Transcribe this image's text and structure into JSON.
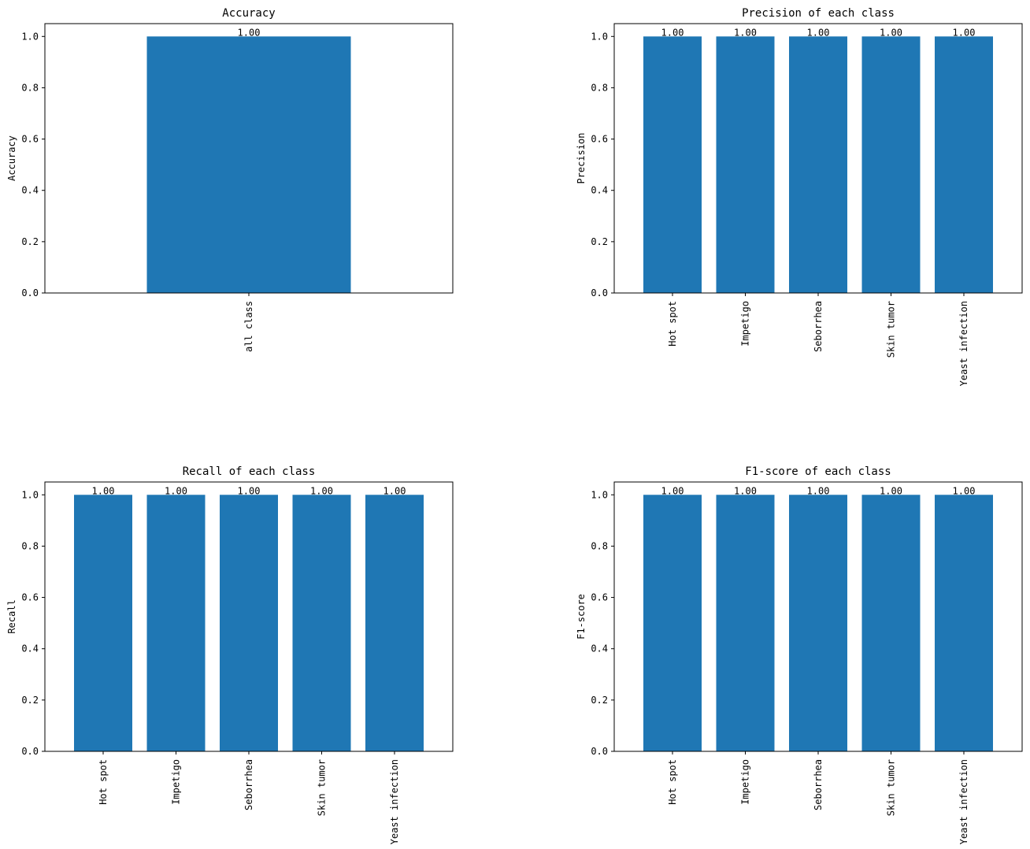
{
  "chart_data": [
    {
      "type": "bar",
      "title": "Accuracy",
      "xlabel": "",
      "ylabel": "Accuracy",
      "categories": [
        "all class"
      ],
      "values": [
        1.0
      ],
      "value_labels": [
        "1.00"
      ],
      "ylim": [
        0,
        1.05
      ],
      "yticks": [
        "0.0",
        "0.2",
        "0.4",
        "0.6",
        "0.8",
        "1.0"
      ],
      "grid": false,
      "color": "#1f77b4"
    },
    {
      "type": "bar",
      "title": "Precision of each class",
      "xlabel": "",
      "ylabel": "Precision",
      "categories": [
        "Hot spot",
        "Impetigo",
        "Seborrhea",
        "Skin tumor",
        "Yeast infection"
      ],
      "values": [
        1.0,
        1.0,
        1.0,
        1.0,
        1.0
      ],
      "value_labels": [
        "1.00",
        "1.00",
        "1.00",
        "1.00",
        "1.00"
      ],
      "ylim": [
        0,
        1.05
      ],
      "yticks": [
        "0.0",
        "0.2",
        "0.4",
        "0.6",
        "0.8",
        "1.0"
      ],
      "grid": false,
      "color": "#1f77b4"
    },
    {
      "type": "bar",
      "title": "Recall of each class",
      "xlabel": "",
      "ylabel": "Recall",
      "categories": [
        "Hot spot",
        "Impetigo",
        "Seborrhea",
        "Skin tumor",
        "Yeast infection"
      ],
      "values": [
        1.0,
        1.0,
        1.0,
        1.0,
        1.0
      ],
      "value_labels": [
        "1.00",
        "1.00",
        "1.00",
        "1.00",
        "1.00"
      ],
      "ylim": [
        0,
        1.05
      ],
      "yticks": [
        "0.0",
        "0.2",
        "0.4",
        "0.6",
        "0.8",
        "1.0"
      ],
      "grid": false,
      "color": "#1f77b4"
    },
    {
      "type": "bar",
      "title": "F1-score of each class",
      "xlabel": "",
      "ylabel": "F1-score",
      "categories": [
        "Hot spot",
        "Impetigo",
        "Seborrhea",
        "Skin tumor",
        "Yeast infection"
      ],
      "values": [
        1.0,
        1.0,
        1.0,
        1.0,
        1.0
      ],
      "value_labels": [
        "1.00",
        "1.00",
        "1.00",
        "1.00",
        "1.00"
      ],
      "ylim": [
        0,
        1.05
      ],
      "yticks": [
        "0.0",
        "0.2",
        "0.4",
        "0.6",
        "0.8",
        "1.0"
      ],
      "grid": false,
      "color": "#1f77b4"
    }
  ]
}
